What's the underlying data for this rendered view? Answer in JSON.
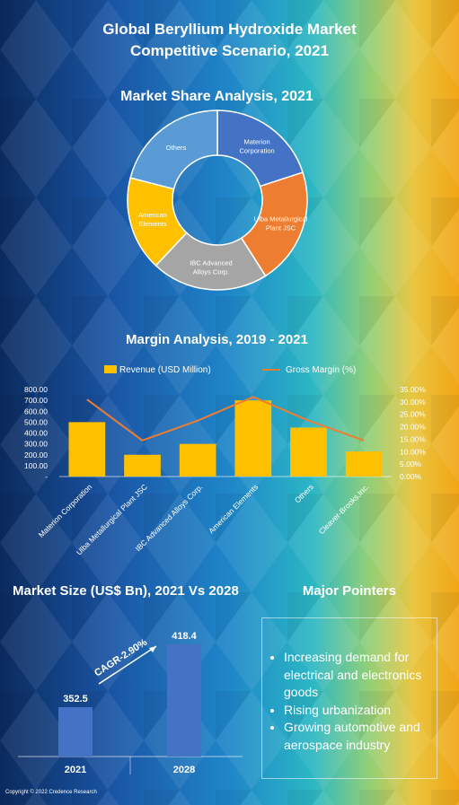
{
  "header": {
    "title_line1": "Global Beryllium Hydroxide Market",
    "title_line2": "Competitive Scenario, 2021"
  },
  "share": {
    "title": "Market Share Analysis, 2021"
  },
  "margin": {
    "title": "Margin Analysis, 2019 - 2021",
    "legend_revenue": "Revenue (USD Million)",
    "legend_margin": "Gross Margin (%)"
  },
  "market_size": {
    "title": "Market Size (US$ Bn), 2021 Vs 2028",
    "cagr": "CAGR-2.90%"
  },
  "pointers": {
    "title": "Major Pointers",
    "items": [
      "Increasing demand for electrical and electronics goods",
      "Rising urbanization",
      "Growing automotive and aerospace industry"
    ]
  },
  "footer": {
    "copyright": "Copyright © 2022 Credence Research"
  },
  "colors": {
    "revenue": "#FFC000",
    "margin": "#ED7D31",
    "size_bar": "#4472C4"
  },
  "chart_data": [
    {
      "type": "pie",
      "title": "Market Share Analysis, 2021",
      "labels": [
        "Materion Corporation",
        "Ulba Metallurgical Plant JSC",
        "IBC Advanced Alloys Corp.",
        "American Elements",
        "Others"
      ],
      "values": [
        20,
        21,
        21,
        17,
        21
      ],
      "colors": [
        "#4472C4",
        "#ED7D31",
        "#A5A5A5",
        "#FFC000",
        "#5B9BD5"
      ]
    },
    {
      "type": "bar",
      "title": "Margin Analysis, 2019 - 2021",
      "categories": [
        "Materion Corporation",
        "Ulba Metallurgical Plant JSC",
        "IBC Advanced Alloys Corp.",
        "American Elements",
        "Others",
        "Cleaver-Brooks,Inc."
      ],
      "series": [
        {
          "name": "Revenue (USD Million)",
          "type": "bar",
          "axis": "left",
          "values": [
            500,
            200,
            300,
            700,
            450,
            230
          ]
        },
        {
          "name": "Gross Margin (%)",
          "type": "line",
          "axis": "right",
          "values": [
            0.31,
            0.145,
            0.225,
            0.32,
            0.225,
            0.145
          ]
        }
      ],
      "y_ticks": [
        "-",
        "100.00",
        "200.00",
        "300.00",
        "400.00",
        "500.00",
        "600.00",
        "700.00",
        "800.00"
      ],
      "ylim": [
        0,
        800
      ],
      "y2_ticks": [
        "0.00%",
        "5.00%",
        "10.00%",
        "15.00%",
        "20.00%",
        "25.00%",
        "30.00%",
        "35.00%"
      ],
      "y2lim": [
        0,
        0.35
      ],
      "legend": "top"
    },
    {
      "type": "bar",
      "title": "Market Size (US$ Bn), 2021 Vs 2028",
      "categories": [
        "2021",
        "2028"
      ],
      "values": [
        352.5,
        418.4
      ],
      "value_labels": [
        "352.5",
        "418.4"
      ],
      "annotation": "CAGR-2.90%"
    }
  ]
}
